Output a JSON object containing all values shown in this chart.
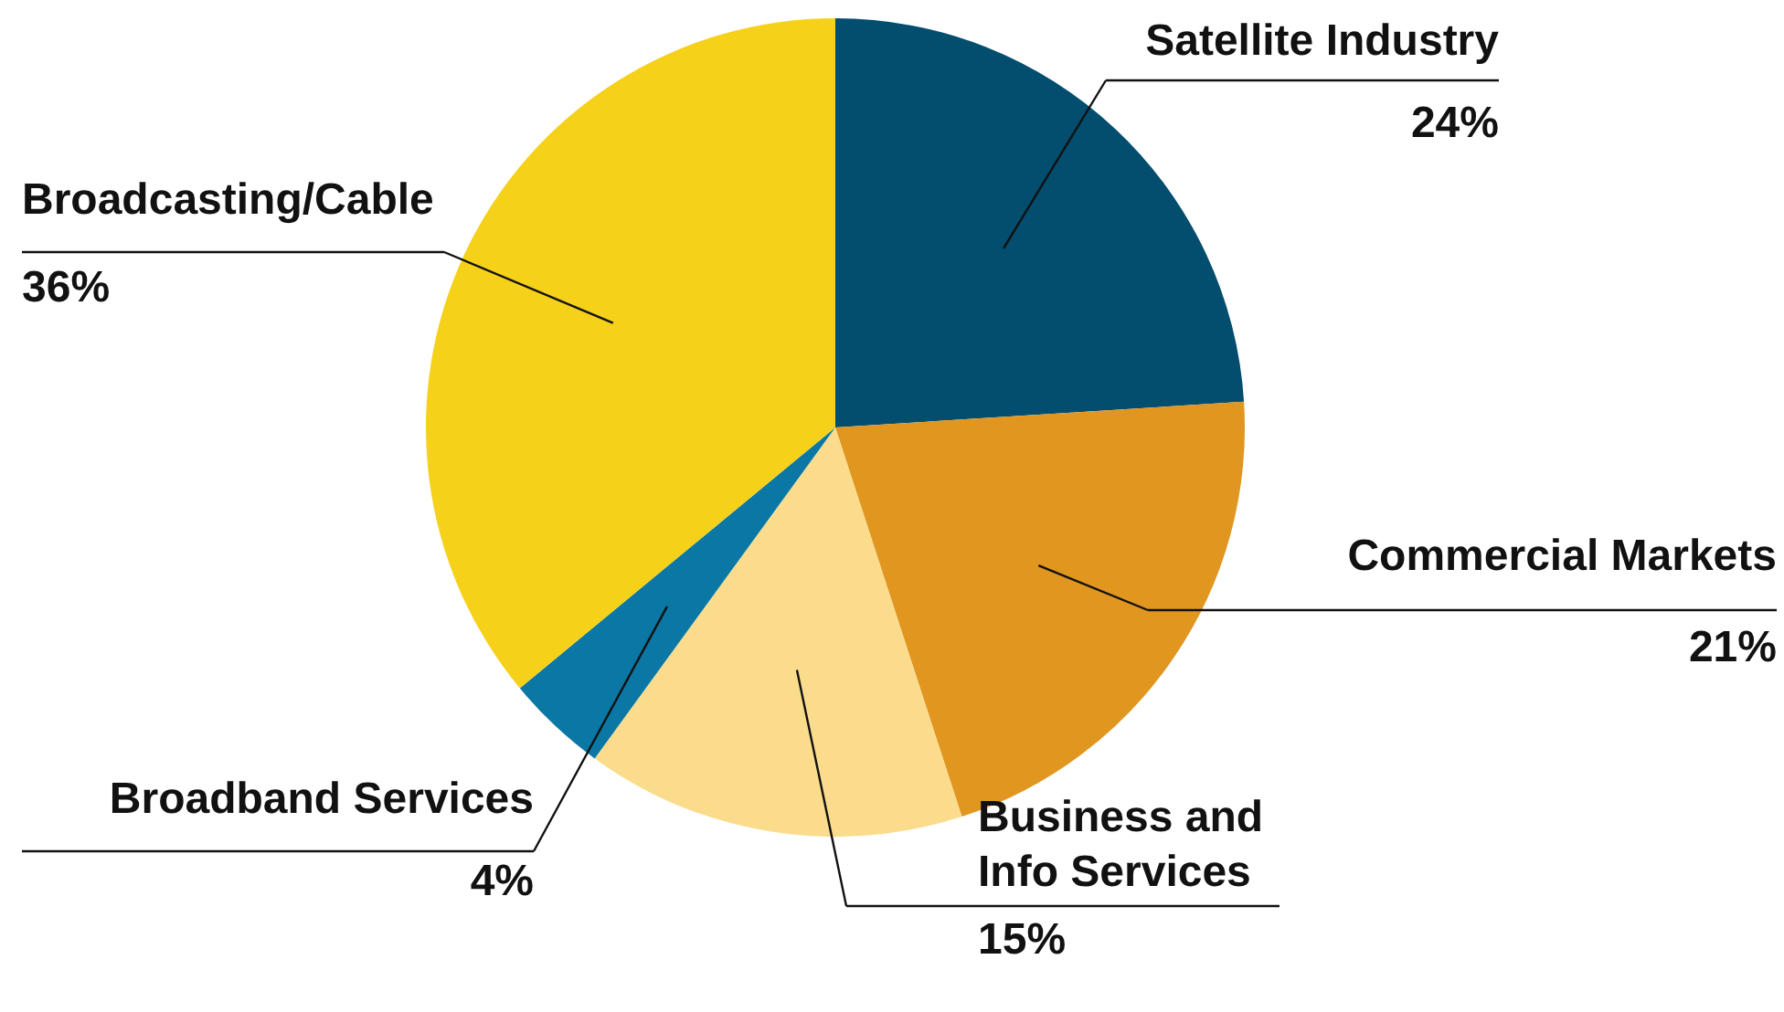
{
  "chart_data": {
    "type": "pie",
    "categories": [
      "Satellite Industry",
      "Commercial Markets",
      "Business and Info Services",
      "Broadband Services",
      "Broadcasting/Cable"
    ],
    "values": [
      24,
      21,
      15,
      4,
      36
    ],
    "value_labels": [
      "24%",
      "21%",
      "15%",
      "4%",
      "36%"
    ],
    "colors": [
      "#034d6e",
      "#e0961f",
      "#fbdc8c",
      "#0a77a5",
      "#f5d11a"
    ],
    "legend": false
  }
}
